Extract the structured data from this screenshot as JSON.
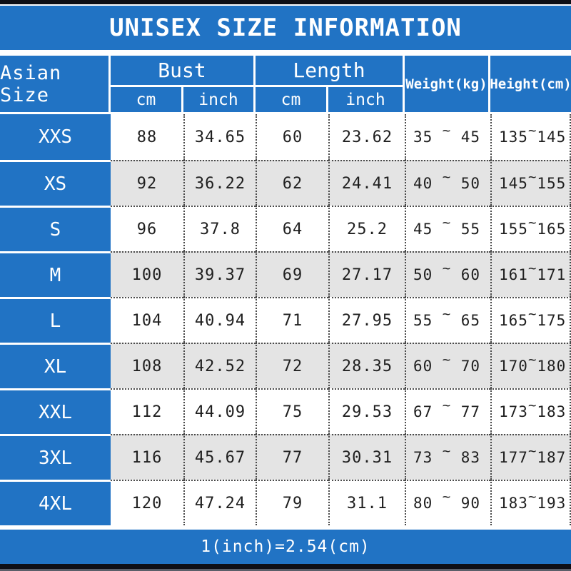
{
  "title": "UNISEX SIZE INFORMATION",
  "footer_note": "1(inch)=2.54(cm)",
  "colors": {
    "blue": "#2173c4",
    "bar_black": "#0e0f16",
    "row_alt_bg": "#e4e4e4",
    "row_bg": "#ffffff",
    "header_text": "#ffffff",
    "cell_text": "#1f1f1f"
  },
  "table": {
    "size_header": "Asian Size",
    "groups": [
      {
        "label": "Bust",
        "subs": [
          "cm",
          "inch"
        ]
      },
      {
        "label": "Length",
        "subs": [
          "cm",
          "inch"
        ]
      }
    ],
    "single_headers": [
      "Weight(kg)",
      "Height(cm)"
    ],
    "tilde": "~",
    "rows": [
      {
        "size": "XXS",
        "bust_cm": "88",
        "bust_inch": "34.65",
        "len_cm": "60",
        "len_inch": "23.62",
        "weight_min": "35",
        "weight_max": "45",
        "height_min": "135",
        "height_max": "145"
      },
      {
        "size": "XS",
        "bust_cm": "92",
        "bust_inch": "36.22",
        "len_cm": "62",
        "len_inch": "24.41",
        "weight_min": "40",
        "weight_max": "50",
        "height_min": "145",
        "height_max": "155"
      },
      {
        "size": "S",
        "bust_cm": "96",
        "bust_inch": "37.8",
        "len_cm": "64",
        "len_inch": "25.2",
        "weight_min": "45",
        "weight_max": "55",
        "height_min": "155",
        "height_max": "165"
      },
      {
        "size": "M",
        "bust_cm": "100",
        "bust_inch": "39.37",
        "len_cm": "69",
        "len_inch": "27.17",
        "weight_min": "50",
        "weight_max": "60",
        "height_min": "161",
        "height_max": "171"
      },
      {
        "size": "L",
        "bust_cm": "104",
        "bust_inch": "40.94",
        "len_cm": "71",
        "len_inch": "27.95",
        "weight_min": "55",
        "weight_max": "65",
        "height_min": "165",
        "height_max": "175"
      },
      {
        "size": "XL",
        "bust_cm": "108",
        "bust_inch": "42.52",
        "len_cm": "72",
        "len_inch": "28.35",
        "weight_min": "60",
        "weight_max": "70",
        "height_min": "170",
        "height_max": "180"
      },
      {
        "size": "XXL",
        "bust_cm": "112",
        "bust_inch": "44.09",
        "len_cm": "75",
        "len_inch": "29.53",
        "weight_min": "67",
        "weight_max": "77",
        "height_min": "173",
        "height_max": "183"
      },
      {
        "size": "3XL",
        "bust_cm": "116",
        "bust_inch": "45.67",
        "len_cm": "77",
        "len_inch": "30.31",
        "weight_min": "73",
        "weight_max": "83",
        "height_min": "177",
        "height_max": "187"
      },
      {
        "size": "4XL",
        "bust_cm": "120",
        "bust_inch": "47.24",
        "len_cm": "79",
        "len_inch": "31.1",
        "weight_min": "80",
        "weight_max": "90",
        "height_min": "183",
        "height_max": "193"
      }
    ]
  },
  "chart_data": {
    "type": "table",
    "title": "UNISEX SIZE INFORMATION",
    "columns": [
      "Asian Size",
      "Bust cm",
      "Bust inch",
      "Length cm",
      "Length inch",
      "Weight(kg)",
      "Height(cm)"
    ],
    "rows": [
      [
        "XXS",
        88,
        34.65,
        60,
        23.62,
        "35~45",
        "135~145"
      ],
      [
        "XS",
        92,
        36.22,
        62,
        24.41,
        "40~50",
        "145~155"
      ],
      [
        "S",
        96,
        37.8,
        64,
        25.2,
        "45~55",
        "155~165"
      ],
      [
        "M",
        100,
        39.37,
        69,
        27.17,
        "50~60",
        "161~171"
      ],
      [
        "L",
        104,
        40.94,
        71,
        27.95,
        "55~65",
        "165~175"
      ],
      [
        "XL",
        108,
        42.52,
        72,
        28.35,
        "60~70",
        "170~180"
      ],
      [
        "XXL",
        112,
        44.09,
        75,
        29.53,
        "67~77",
        "173~183"
      ],
      [
        "3XL",
        116,
        45.67,
        77,
        30.31,
        "73~83",
        "177~187"
      ],
      [
        "4XL",
        120,
        47.24,
        79,
        31.1,
        "80~90",
        "183~193"
      ]
    ],
    "footnote": "1(inch)=2.54(cm)"
  }
}
